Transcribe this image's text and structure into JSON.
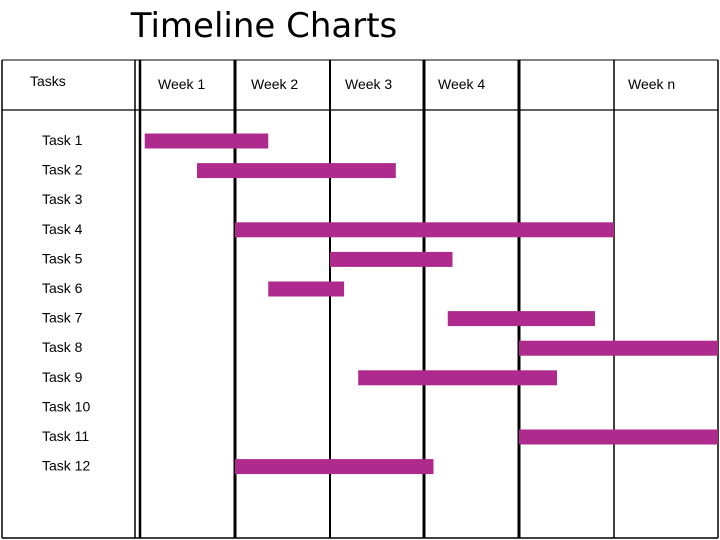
{
  "title": "Timeline Charts",
  "chart_data": {
    "type": "gantt",
    "title": "Timeline Charts",
    "task_header": "Tasks",
    "columns": [
      "Week 1",
      "Week 2",
      "Week 3",
      "Week 4",
      "",
      "Week n"
    ],
    "x_unit": "week",
    "xlim": [
      0,
      6
    ],
    "grid": true,
    "bar_color": "#AE2A8C",
    "tasks": [
      {
        "name": "Task 1",
        "start": 0.05,
        "end": 1.35
      },
      {
        "name": "Task 2",
        "start": 0.6,
        "end": 2.7
      },
      {
        "name": "Task 3",
        "start": null,
        "end": null
      },
      {
        "name": "Task 4",
        "start": 1.0,
        "end": 5.0
      },
      {
        "name": "Task 5",
        "start": 2.0,
        "end": 3.3
      },
      {
        "name": "Task 6",
        "start": 1.35,
        "end": 2.15
      },
      {
        "name": "Task 7",
        "start": 3.25,
        "end": 4.8
      },
      {
        "name": "Task 8",
        "start": 4.0,
        "end": 6.0
      },
      {
        "name": "Task 9",
        "start": 2.3,
        "end": 4.4
      },
      {
        "name": "Task 10",
        "start": null,
        "end": null
      },
      {
        "name": "Task 11",
        "start": 4.0,
        "end": 6.0
      },
      {
        "name": "Task 12",
        "start": 1.0,
        "end": 3.1
      }
    ]
  }
}
